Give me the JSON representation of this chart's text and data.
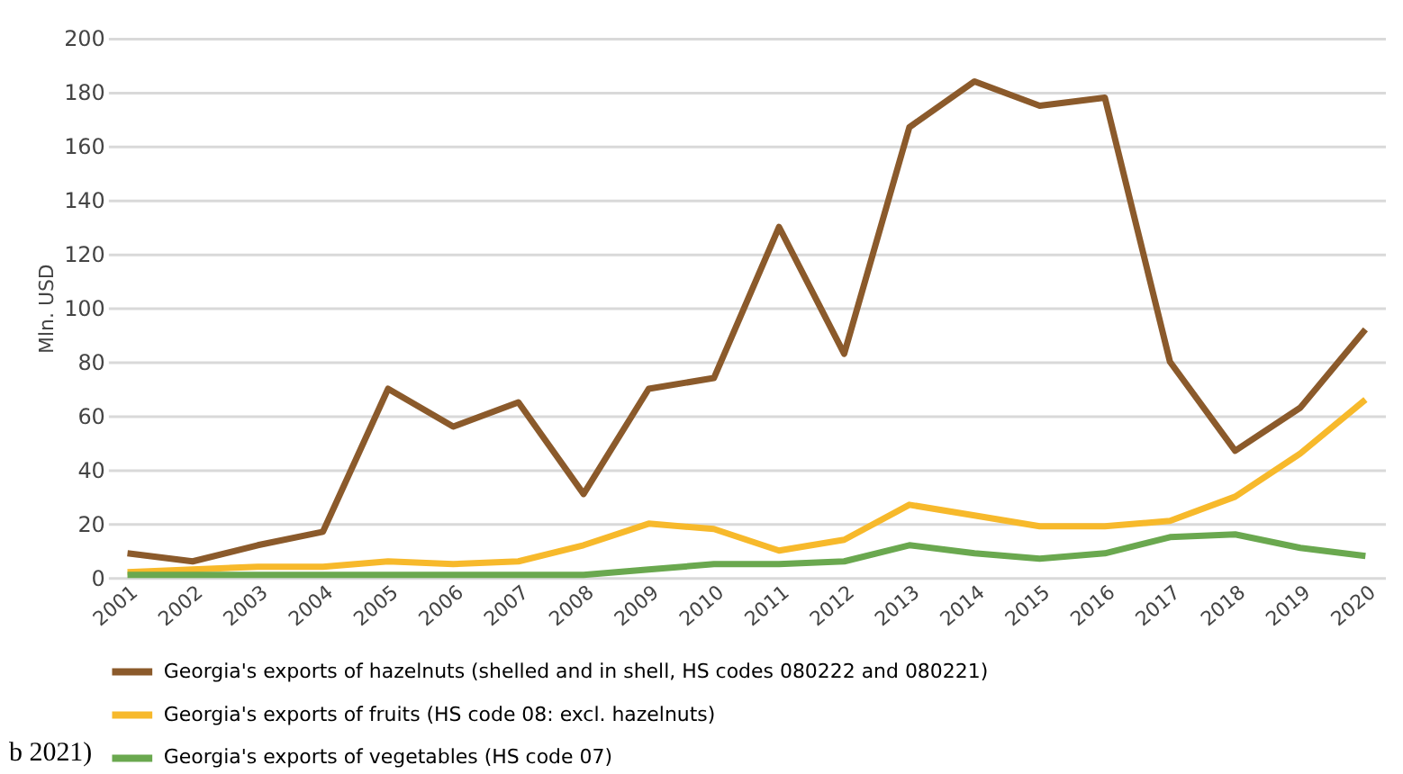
{
  "chart_data": {
    "type": "line",
    "ylabel": "Mln. USD",
    "categories": [
      "2001",
      "2002",
      "2003",
      "2004",
      "2005",
      "2006",
      "2007",
      "2008",
      "2009",
      "2010",
      "2011",
      "2012",
      "2013",
      "2014",
      "2015",
      "2016",
      "2017",
      "2018",
      "2019",
      "2020"
    ],
    "series": [
      {
        "name": "Georgia's exports of hazelnuts (shelled and in shell, HS codes 080222 and 080221)",
        "color": "#8b5a2b",
        "values": [
          9,
          6,
          12,
          17,
          70,
          56,
          65,
          31,
          70,
          74,
          130,
          83,
          167,
          184,
          175,
          178,
          80,
          47,
          63,
          92
        ]
      },
      {
        "name": "Georgia's exports of fruits (HS code 08: excl. hazelnuts)",
        "color": "#f7b92b",
        "values": [
          2,
          3,
          4,
          4,
          6,
          5,
          6,
          12,
          20,
          18,
          10,
          14,
          27,
          23,
          19,
          19,
          21,
          30,
          46,
          66
        ]
      },
      {
        "name": "Georgia's exports of vegetables (HS code 07)",
        "color": "#6aa84f",
        "values": [
          1,
          1,
          1,
          1,
          1,
          1,
          1,
          1,
          3,
          5,
          5,
          6,
          12,
          9,
          7,
          9,
          15,
          16,
          11,
          8
        ]
      }
    ],
    "ylim": [
      0,
      200
    ],
    "yticks": [
      0,
      20,
      40,
      60,
      80,
      100,
      120,
      140,
      160,
      180,
      200
    ],
    "grid": "y",
    "legend": "bottom",
    "marker": "none",
    "line_style": "solid",
    "annotations": [
      "b 2021)"
    ]
  }
}
